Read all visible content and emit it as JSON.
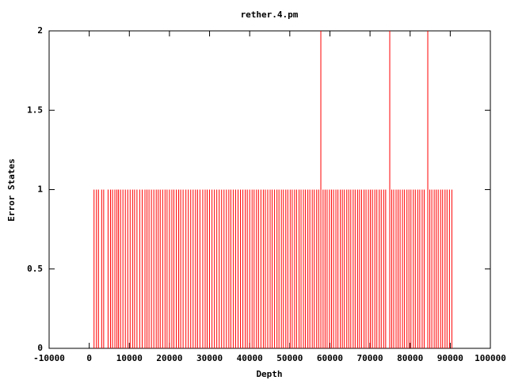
{
  "chart_data": {
    "type": "impulse",
    "title": "rether.4.pm",
    "x_label": "Depth",
    "y_label": "Error States",
    "x": [
      1200,
      1800,
      2300,
      3100,
      3600,
      4700,
      5300,
      5800,
      6400,
      6900,
      7300,
      7800,
      8400,
      9000,
      9600,
      10200,
      10800,
      11300,
      11900,
      12600,
      13200,
      13900,
      14400,
      14900,
      15500,
      16100,
      16700,
      17200,
      17700,
      18300,
      18900,
      19400,
      20000,
      20600,
      21100,
      21700,
      22300,
      22800,
      23400,
      24100,
      24700,
      25300,
      25900,
      26500,
      27000,
      27600,
      28300,
      28900,
      29400,
      30000,
      30600,
      31200,
      31800,
      32400,
      33000,
      33600,
      34200,
      34800,
      35300,
      35900,
      36500,
      37100,
      37700,
      38300,
      38900,
      39400,
      40000,
      40600,
      41100,
      41700,
      42200,
      42800,
      43400,
      43900,
      44500,
      45100,
      45600,
      46200,
      46800,
      47300,
      47900,
      48400,
      49000,
      49500,
      50100,
      50600,
      51200,
      51700,
      52300,
      52800,
      53400,
      53900,
      54500,
      55000,
      55600,
      56100,
      56700,
      57200,
      57740,
      58300,
      58800,
      59300,
      59900,
      60400,
      60900,
      61500,
      62000,
      62600,
      63100,
      63600,
      64200,
      64700,
      65200,
      65800,
      66300,
      66900,
      67400,
      67900,
      68500,
      69000,
      69600,
      70100,
      70600,
      71200,
      71700,
      72300,
      72800,
      73400,
      73900,
      74920,
      75400,
      75900,
      76500,
      77000,
      77500,
      78100,
      78600,
      79200,
      79700,
      80200,
      80800,
      81300,
      81900,
      82400,
      83000,
      83500,
      84400,
      84900,
      85400,
      86000,
      86500,
      87000,
      87600,
      88100,
      88700,
      89200,
      89800,
      90400
    ],
    "values": [
      1,
      1,
      1,
      1,
      1,
      1,
      1,
      1,
      1,
      1,
      1,
      1,
      1,
      1,
      1,
      1,
      1,
      1,
      1,
      1,
      1,
      1,
      1,
      1,
      1,
      1,
      1,
      1,
      1,
      1,
      1,
      1,
      1,
      1,
      1,
      1,
      1,
      1,
      1,
      1,
      1,
      1,
      1,
      1,
      1,
      1,
      1,
      1,
      1,
      1,
      1,
      1,
      1,
      1,
      1,
      1,
      1,
      1,
      1,
      1,
      1,
      1,
      1,
      1,
      1,
      1,
      1,
      1,
      1,
      1,
      1,
      1,
      1,
      1,
      1,
      1,
      1,
      1,
      1,
      1,
      1,
      1,
      1,
      1,
      1,
      1,
      1,
      1,
      1,
      1,
      1,
      1,
      1,
      1,
      1,
      1,
      1,
      1,
      2,
      1,
      1,
      1,
      1,
      1,
      1,
      1,
      1,
      1,
      1,
      1,
      1,
      1,
      1,
      1,
      1,
      1,
      1,
      1,
      1,
      1,
      1,
      1,
      1,
      1,
      1,
      1,
      1,
      1,
      1,
      2,
      1,
      1,
      1,
      1,
      1,
      1,
      1,
      1,
      1,
      1,
      1,
      1,
      1,
      1,
      1,
      1,
      2,
      1,
      1,
      1,
      1,
      1,
      1,
      1,
      1,
      1,
      1,
      1
    ],
    "color": "#ff0000",
    "xlim": [
      -10000,
      100000
    ],
    "xticks": [
      -10000,
      0,
      10000,
      20000,
      30000,
      40000,
      50000,
      60000,
      70000,
      80000,
      90000,
      100000
    ],
    "ylim": [
      0,
      2
    ],
    "yticks": [
      0,
      0.5,
      1,
      1.5,
      2
    ]
  }
}
